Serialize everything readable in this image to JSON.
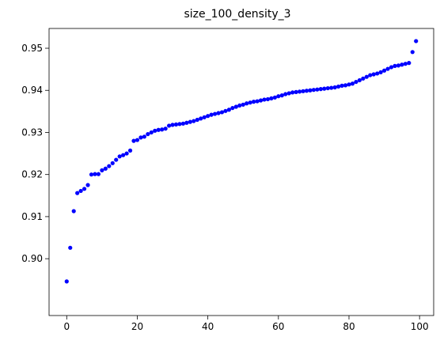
{
  "chart_data": {
    "type": "scatter",
    "title": "size_100_density_3",
    "xlabel": "",
    "ylabel": "",
    "xlim": [
      -5,
      104
    ],
    "ylim": [
      0.8865,
      0.9547
    ],
    "xticks": [
      0,
      20,
      40,
      60,
      80,
      100
    ],
    "xtick_labels": [
      "0",
      "20",
      "40",
      "60",
      "80",
      "100"
    ],
    "yticks": [
      0.9,
      0.91,
      0.92,
      0.93,
      0.94,
      0.95
    ],
    "ytick_labels": [
      "0.90",
      "0.91",
      "0.92",
      "0.93",
      "0.94",
      "0.95"
    ],
    "grid": false,
    "legend": "none",
    "marker_color": "#0000ff",
    "series": [
      {
        "x": [
          0,
          1,
          2,
          3,
          4,
          5,
          6,
          7,
          8,
          9,
          10,
          11,
          12,
          13,
          14,
          15,
          16,
          17,
          18,
          19,
          20,
          21,
          22,
          23,
          24,
          25,
          26,
          27,
          28,
          29,
          30,
          31,
          32,
          33,
          34,
          35,
          36,
          37,
          38,
          39,
          40,
          41,
          42,
          43,
          44,
          45,
          46,
          47,
          48,
          49,
          50,
          51,
          52,
          53,
          54,
          55,
          56,
          57,
          58,
          59,
          60,
          61,
          62,
          63,
          64,
          65,
          66,
          67,
          68,
          69,
          70,
          71,
          72,
          73,
          74,
          75,
          76,
          77,
          78,
          79,
          80,
          81,
          82,
          83,
          84,
          85,
          86,
          87,
          88,
          89,
          90,
          91,
          92,
          93,
          94,
          95,
          96,
          97,
          98,
          99
        ],
        "y": [
          0.8946,
          0.9026,
          0.9113,
          0.9156,
          0.9161,
          0.9166,
          0.9175,
          0.92,
          0.9201,
          0.9201,
          0.921,
          0.9214,
          0.922,
          0.9227,
          0.9235,
          0.9243,
          0.9246,
          0.925,
          0.9257,
          0.928,
          0.9282,
          0.9288,
          0.929,
          0.9296,
          0.93,
          0.9304,
          0.9306,
          0.9307,
          0.9309,
          0.9316,
          0.9318,
          0.9319,
          0.932,
          0.9321,
          0.9323,
          0.9325,
          0.9327,
          0.933,
          0.9333,
          0.9336,
          0.9339,
          0.9342,
          0.9344,
          0.9346,
          0.9348,
          0.9351,
          0.9354,
          0.9358,
          0.9361,
          0.9364,
          0.9366,
          0.9369,
          0.9371,
          0.9373,
          0.9374,
          0.9376,
          0.9378,
          0.9379,
          0.9381,
          0.9383,
          0.9386,
          0.9388,
          0.9391,
          0.9393,
          0.9395,
          0.9396,
          0.9397,
          0.9398,
          0.9399,
          0.94,
          0.9401,
          0.9402,
          0.9403,
          0.9404,
          0.9405,
          0.9406,
          0.9407,
          0.9409,
          0.9411,
          0.9412,
          0.9414,
          0.9416,
          0.942,
          0.9424,
          0.9428,
          0.9432,
          0.9436,
          0.9438,
          0.944,
          0.9443,
          0.9447,
          0.9451,
          0.9455,
          0.9458,
          0.9459,
          0.9461,
          0.9463,
          0.9465,
          0.9491,
          0.9517
        ]
      }
    ]
  }
}
